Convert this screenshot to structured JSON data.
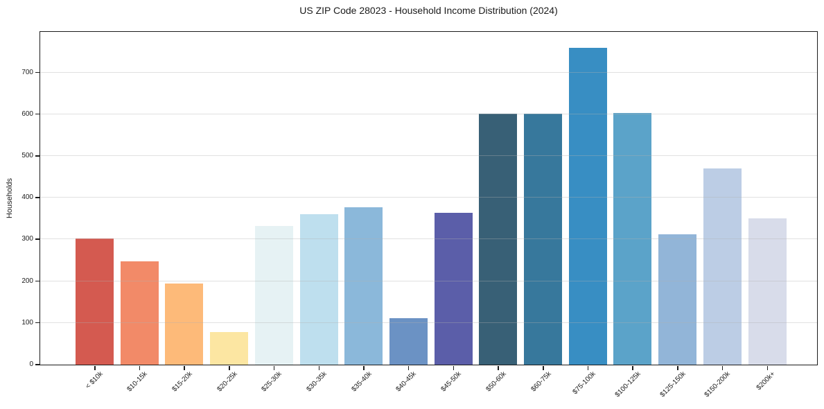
{
  "title": "US ZIP Code 28023 - Household Income Distribution (2024)",
  "chart_data": {
    "type": "bar",
    "title": "US ZIP Code 28023 - Household Income Distribution (2024)",
    "xlabel": "",
    "ylabel": "Households",
    "categories": [
      "< $10k",
      "$10-15k",
      "$15-20k",
      "$20-25k",
      "$25-30k",
      "$30-35k",
      "$35-40k",
      "$40-45k",
      "$45-50k",
      "$50-60k",
      "$60-75k",
      "$75-100k",
      "$100-125k",
      "$125-150k",
      "$150-200k",
      "$200k+"
    ],
    "values": [
      302,
      248,
      195,
      78,
      332,
      360,
      377,
      111,
      364,
      602,
      602,
      760,
      604,
      312,
      470,
      351
    ],
    "bar_colors": [
      "#d45a50",
      "#f28a68",
      "#fdba79",
      "#fce6a2",
      "#e6f2f4",
      "#bedfee",
      "#8bb8da",
      "#6b92c4",
      "#5b5ea9",
      "#386076",
      "#37789c",
      "#388ec3",
      "#5ba3c9",
      "#92b5d8",
      "#bccde5",
      "#d8dcea"
    ],
    "yticks": [
      0,
      100,
      200,
      300,
      400,
      500,
      600,
      700
    ],
    "ylim": [
      0,
      796
    ],
    "grid": "horizontal-above-bars",
    "legend": "none",
    "colors": {
      "spine": "#1a1a1a",
      "grid": "#b0b0b0",
      "background": "#ffffff",
      "text": "#1a1a1a"
    }
  }
}
